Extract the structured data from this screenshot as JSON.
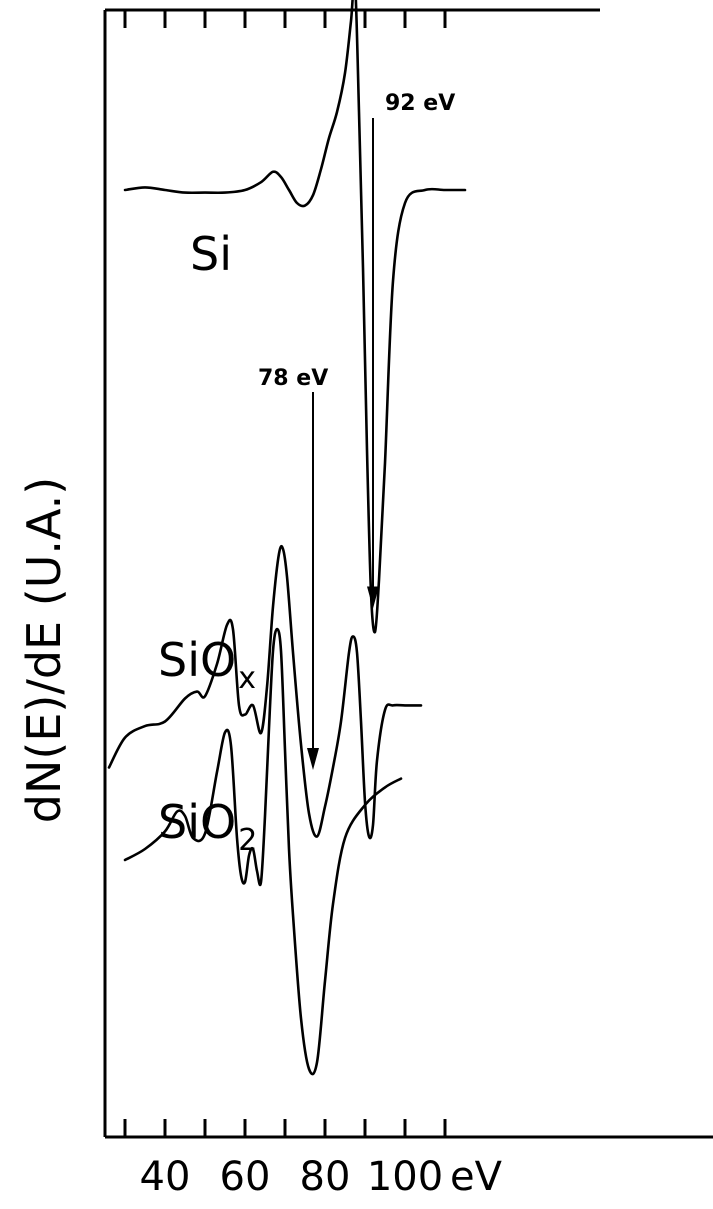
{
  "chart_data": {
    "type": "line",
    "title": "",
    "xlabel": "",
    "x_unit": "eV",
    "ylabel": "dN(E)/dE (U.A.)",
    "xlim": [
      25,
      120
    ],
    "x_ticks": [
      40,
      60,
      80,
      100
    ],
    "x_tick_labels": [
      "40",
      "60",
      "80",
      "100"
    ],
    "grid": false,
    "legend": "none",
    "series": [
      {
        "name": "Si",
        "label_main": "Si",
        "label_sub": "",
        "x": [
          30,
          35,
          40,
          45,
          50,
          55,
          60,
          64,
          67,
          69,
          71,
          73,
          75,
          77,
          79,
          81,
          83,
          85,
          86.5,
          87.5,
          88.5,
          89.5,
          90.5,
          91.5,
          92.5,
          93.5,
          95,
          97,
          100,
          105,
          110,
          115
        ],
        "y": [
          0.0,
          0.01,
          0.0,
          -0.01,
          -0.01,
          -0.01,
          0.0,
          0.03,
          0.07,
          0.05,
          0.0,
          -0.05,
          -0.06,
          -0.02,
          0.08,
          0.2,
          0.3,
          0.45,
          0.65,
          0.8,
          0.3,
          -0.3,
          -1.0,
          -1.55,
          -1.7,
          -1.5,
          -1.05,
          -0.35,
          -0.05,
          0.0,
          0.0,
          0.0
        ]
      },
      {
        "name": "SiOx",
        "label_main": "SiO",
        "label_sub": "x",
        "x": [
          26,
          30,
          35,
          40,
          45,
          48,
          50,
          53,
          55.5,
          57,
          58.5,
          60,
          62,
          64,
          65.5,
          67,
          68.5,
          69.5,
          70.5,
          72,
          74,
          76,
          78,
          80,
          82,
          84,
          86,
          87,
          88,
          89,
          90,
          91,
          92,
          93,
          95,
          97,
          100,
          104
        ],
        "y": [
          -0.25,
          -0.12,
          -0.07,
          -0.05,
          0.05,
          0.08,
          0.06,
          0.2,
          0.37,
          0.35,
          0.02,
          -0.02,
          0.02,
          -0.1,
          0.1,
          0.45,
          0.68,
          0.7,
          0.58,
          0.25,
          -0.15,
          -0.45,
          -0.55,
          -0.42,
          -0.25,
          -0.05,
          0.25,
          0.32,
          0.25,
          -0.05,
          -0.4,
          -0.55,
          -0.5,
          -0.22,
          0.0,
          0.02,
          0.02,
          0.02
        ]
      },
      {
        "name": "SiO2",
        "label_main": "SiO",
        "label_sub": "2",
        "x": [
          30,
          35,
          40,
          43,
          45,
          47,
          50,
          53,
          55,
          56.5,
          58,
          59,
          60,
          61,
          62,
          63,
          64,
          65,
          66,
          67,
          68,
          69,
          70,
          71,
          72,
          74,
          76,
          78,
          80,
          82,
          85,
          90,
          95,
          99
        ],
        "y": [
          0.0,
          0.05,
          0.13,
          0.22,
          0.2,
          0.1,
          0.12,
          0.4,
          0.58,
          0.52,
          0.1,
          -0.07,
          -0.1,
          0.02,
          0.05,
          -0.05,
          -0.1,
          0.2,
          0.6,
          0.95,
          1.05,
          0.95,
          0.5,
          0.05,
          -0.25,
          -0.72,
          -0.95,
          -0.92,
          -0.55,
          -0.2,
          0.1,
          0.25,
          0.33,
          0.37
        ]
      }
    ],
    "annotations": [
      {
        "text": "92 eV",
        "x": 92,
        "series": "Si"
      },
      {
        "text": "78 eV",
        "x": 77,
        "series": "SiOx"
      }
    ]
  }
}
